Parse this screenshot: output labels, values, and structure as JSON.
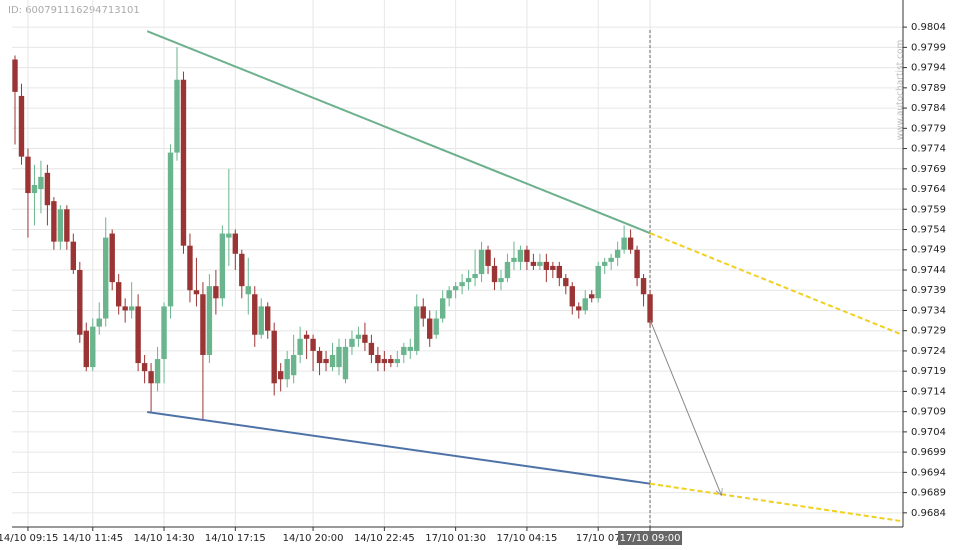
{
  "chart_data": {
    "type": "candlestick",
    "id_label": "ID: 600791116294713101",
    "watermark": "www.autochartist.com",
    "up_color": "#6ab58e",
    "down_color": "#9b3535",
    "categories": [
      null,
      null,
      "14/10 09:15",
      null,
      null,
      null,
      null,
      null,
      null,
      null,
      null,
      null,
      "14/10 11:45",
      null,
      null,
      null,
      null,
      null,
      null,
      null,
      null,
      null,
      null,
      "14/10 14:30",
      null,
      null,
      null,
      null,
      null,
      null,
      null,
      null,
      null,
      null,
      "14/10 17:15",
      null,
      null,
      null,
      null,
      null,
      null,
      null,
      null,
      null,
      null,
      null,
      "14/10 20:00",
      null,
      null,
      null,
      null,
      null,
      null,
      null,
      null,
      null,
      null,
      "14/10 22:45",
      null,
      null,
      null,
      null,
      null,
      null,
      null,
      null,
      null,
      null,
      "17/10 01:30",
      null,
      null,
      null,
      null,
      null,
      null,
      null,
      null,
      null,
      null,
      "17/10 04:15",
      null,
      null,
      null,
      null,
      null,
      null,
      null,
      null,
      null,
      null,
      "17/10 07",
      null,
      null,
      null,
      null,
      null,
      null,
      null,
      "17/10 09:00"
    ],
    "candles": [
      [
        0.9796,
        0.9797,
        0.9775,
        0.9788
      ],
      [
        0.9787,
        0.979,
        0.977,
        0.9772
      ],
      [
        0.9772,
        0.9774,
        0.9752,
        0.9763
      ],
      [
        0.9763,
        0.977,
        0.9755,
        0.9765
      ],
      [
        0.9764,
        0.9771,
        0.9758,
        0.9767
      ],
      [
        0.9768,
        0.977,
        0.9755,
        0.976
      ],
      [
        0.9761,
        0.9762,
        0.9749,
        0.9751
      ],
      [
        0.9751,
        0.976,
        0.9749,
        0.9759
      ],
      [
        0.9759,
        0.976,
        0.9749,
        0.9751
      ],
      [
        0.9751,
        0.9753,
        0.9743,
        0.9744
      ],
      [
        0.9744,
        0.9746,
        0.9726,
        0.9728
      ],
      [
        0.9729,
        0.9731,
        0.9719,
        0.972
      ],
      [
        0.972,
        0.9732,
        0.9719,
        0.973
      ],
      [
        0.973,
        0.9736,
        0.9728,
        0.9732
      ],
      [
        0.9732,
        0.9757,
        0.973,
        0.9752
      ],
      [
        0.9753,
        0.9754,
        0.9739,
        0.9741
      ],
      [
        0.9741,
        0.9743,
        0.9733,
        0.9735
      ],
      [
        0.9735,
        0.9737,
        0.9731,
        0.9734
      ],
      [
        0.9734,
        0.9741,
        0.9732,
        0.9735
      ],
      [
        0.9735,
        0.9738,
        0.9719,
        0.9721
      ],
      [
        0.9721,
        0.9723,
        0.9716,
        0.9719
      ],
      [
        0.9719,
        0.9721,
        0.9709,
        0.9716
      ],
      [
        0.9716,
        0.9725,
        0.9714,
        0.9722
      ],
      [
        0.9722,
        0.9736,
        0.9716,
        0.9735
      ],
      [
        0.9735,
        0.9775,
        0.9732,
        0.9773
      ],
      [
        0.9773,
        0.9799,
        0.9771,
        0.9791
      ],
      [
        0.9791,
        0.9793,
        0.9748,
        0.975
      ],
      [
        0.975,
        0.9753,
        0.9736,
        0.9739
      ],
      [
        0.9739,
        0.9747,
        0.9735,
        0.9738
      ],
      [
        0.9738,
        0.9741,
        0.9707,
        0.9723
      ],
      [
        0.9723,
        0.9743,
        0.9721,
        0.974
      ],
      [
        0.974,
        0.9744,
        0.9733,
        0.9737
      ],
      [
        0.9737,
        0.9755,
        0.9735,
        0.9753
      ],
      [
        0.9752,
        0.9769,
        0.9745,
        0.9753
      ],
      [
        0.9753,
        0.9754,
        0.9744,
        0.9748
      ],
      [
        0.9748,
        0.9749,
        0.9737,
        0.974
      ],
      [
        0.9738,
        0.9747,
        0.9733,
        0.974
      ],
      [
        0.9738,
        0.974,
        0.9725,
        0.9728
      ],
      [
        0.9728,
        0.9737,
        0.9727,
        0.9735
      ],
      [
        0.9735,
        0.9736,
        0.9727,
        0.9729
      ],
      [
        0.9729,
        0.9731,
        0.9713,
        0.9716
      ],
      [
        0.9719,
        0.9721,
        0.9714,
        0.9717
      ],
      [
        0.9717,
        0.9724,
        0.9715,
        0.9722
      ],
      [
        0.9718,
        0.9728,
        0.9716,
        0.9723
      ],
      [
        0.9723,
        0.973,
        0.9721,
        0.9727
      ],
      [
        0.9728,
        0.9729,
        0.9722,
        0.9727
      ],
      [
        0.9727,
        0.9728,
        0.9719,
        0.9724
      ],
      [
        0.9724,
        0.9725,
        0.9718,
        0.9721
      ],
      [
        0.9722,
        0.9724,
        0.9719,
        0.9721
      ],
      [
        0.972,
        0.9726,
        0.9719,
        0.9723
      ],
      [
        0.972,
        0.9727,
        0.9718,
        0.9725
      ],
      [
        0.9717,
        0.9727,
        0.9716,
        0.9725
      ],
      [
        0.9725,
        0.9729,
        0.9723,
        0.9727
      ],
      [
        0.9727,
        0.973,
        0.9725,
        0.9728
      ],
      [
        0.9728,
        0.9731,
        0.9724,
        0.9726
      ],
      [
        0.9726,
        0.9728,
        0.9721,
        0.9723
      ],
      [
        0.9723,
        0.9725,
        0.9719,
        0.9721
      ],
      [
        0.9722,
        0.9724,
        0.9719,
        0.9721
      ],
      [
        0.9722,
        0.9723,
        0.972,
        0.9721
      ],
      [
        0.9721,
        0.9724,
        0.972,
        0.9722
      ],
      [
        0.9723,
        0.9726,
        0.9721,
        0.9725
      ],
      [
        0.9724,
        0.9727,
        0.9722,
        0.9725
      ],
      [
        0.9724,
        0.9738,
        0.9723,
        0.9735
      ],
      [
        0.9735,
        0.9737,
        0.973,
        0.9732
      ],
      [
        0.9732,
        0.9734,
        0.9725,
        0.9727
      ],
      [
        0.9728,
        0.9734,
        0.9727,
        0.9732
      ],
      [
        0.9732,
        0.9739,
        0.9731,
        0.9737
      ],
      [
        0.9737,
        0.974,
        0.9735,
        0.9739
      ],
      [
        0.9739,
        0.9741,
        0.9737,
        0.974
      ],
      [
        0.974,
        0.9743,
        0.9738,
        0.9741
      ],
      [
        0.9741,
        0.9744,
        0.9739,
        0.9742
      ],
      [
        0.9742,
        0.9749,
        0.974,
        0.9743
      ],
      [
        0.9743,
        0.9751,
        0.9741,
        0.9749
      ],
      [
        0.9749,
        0.975,
        0.9743,
        0.9745
      ],
      [
        0.9745,
        0.9747,
        0.9739,
        0.9741
      ],
      [
        0.9741,
        0.9744,
        0.9739,
        0.9742
      ],
      [
        0.9742,
        0.9748,
        0.9741,
        0.9746
      ],
      [
        0.9746,
        0.9751,
        0.9744,
        0.9747
      ],
      [
        0.9746,
        0.975,
        0.9744,
        0.9749
      ],
      [
        0.9749,
        0.975,
        0.9744,
        0.9746
      ],
      [
        0.9746,
        0.9748,
        0.9744,
        0.9745
      ],
      [
        0.9745,
        0.9748,
        0.9744,
        0.9746
      ],
      [
        0.9746,
        0.9748,
        0.9741,
        0.9744
      ],
      [
        0.9745,
        0.9746,
        0.9742,
        0.9744
      ],
      [
        0.9745,
        0.9746,
        0.974,
        0.9742
      ],
      [
        0.9742,
        0.9743,
        0.9738,
        0.974
      ],
      [
        0.974,
        0.9741,
        0.9733,
        0.9735
      ],
      [
        0.9735,
        0.9736,
        0.9732,
        0.9734
      ],
      [
        0.9734,
        0.9739,
        0.9733,
        0.9737
      ],
      [
        0.9738,
        0.9739,
        0.9736,
        0.9737
      ],
      [
        0.9737,
        0.9746,
        0.9736,
        0.9745
      ],
      [
        0.9745,
        0.9747,
        0.9743,
        0.9746
      ],
      [
        0.9746,
        0.9748,
        0.9744,
        0.9747
      ],
      [
        0.9747,
        0.9751,
        0.9745,
        0.9749
      ],
      [
        0.9749,
        0.9755,
        0.9748,
        0.9752
      ],
      [
        0.9752,
        0.9754,
        0.9748,
        0.9749
      ],
      [
        0.9749,
        0.975,
        0.974,
        0.9742
      ],
      [
        0.9742,
        0.9743,
        0.9735,
        0.9738
      ],
      [
        0.9738,
        0.9739,
        0.973,
        0.9731
      ]
    ],
    "ylim": [
      0.96805,
      0.98107
    ],
    "yticks": [
      0.9684,
      0.9689,
      0.9694,
      0.9699,
      0.9704,
      0.9709,
      0.9714,
      0.9719,
      0.9724,
      0.9729,
      0.9734,
      0.9739,
      0.9744,
      0.9749,
      0.9754,
      0.9759,
      0.9764,
      0.9769,
      0.9774,
      0.9779,
      0.9784,
      0.9789,
      0.9794,
      0.9799,
      0.9804
    ],
    "grid": true,
    "trendlines": [
      {
        "color": "#6cb08c",
        "dashed": false,
        "points": [
          [
            20.4,
            0.9803
          ],
          [
            98,
            0.97531
          ]
        ]
      },
      {
        "color": "#f0d020",
        "dashed": true,
        "points": [
          [
            98,
            0.97531
          ],
          [
            136.6,
            0.97282
          ]
        ]
      },
      {
        "color": "#4e72a8",
        "dashed": false,
        "points": [
          [
            20.4,
            0.97089
          ],
          [
            98,
            0.96912
          ]
        ]
      },
      {
        "color": "#f0d020",
        "dashed": true,
        "points": [
          [
            98,
            0.96912
          ],
          [
            136.6,
            0.9682
          ]
        ]
      },
      {
        "color": "#888888",
        "dashed": false,
        "arrow": true,
        "points": [
          [
            98,
            0.97317
          ],
          [
            109,
            0.96884
          ]
        ]
      }
    ]
  }
}
